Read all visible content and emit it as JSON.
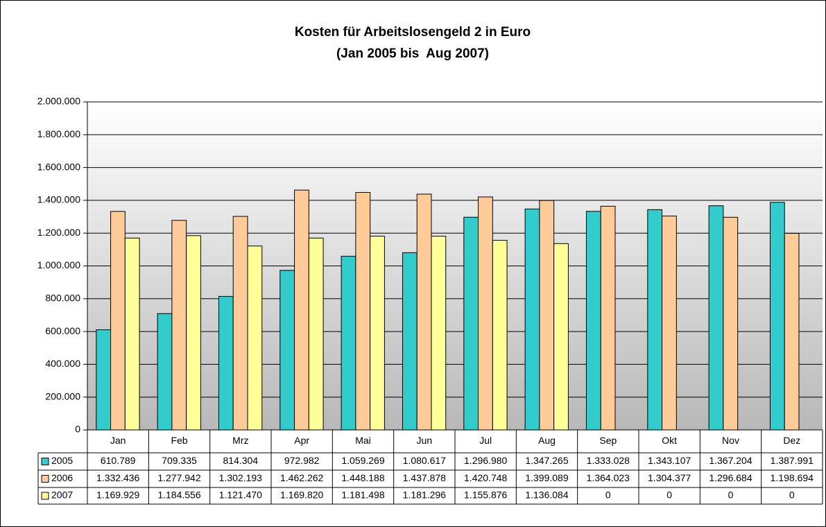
{
  "chart_data": {
    "type": "bar",
    "title": "Kosten für Arbeitslosengeld 2 in Euro",
    "subtitle": "(Jan 2005 bis  Aug 2007)",
    "categories": [
      "Jan",
      "Feb",
      "Mrz",
      "Apr",
      "Mai",
      "Jun",
      "Jul",
      "Aug",
      "Sep",
      "Okt",
      "Nov",
      "Dez"
    ],
    "series": [
      {
        "name": "2005",
        "color": "#33CCCC",
        "values": [
          610789,
          709335,
          814304,
          972982,
          1059269,
          1080617,
          1296980,
          1347265,
          1333028,
          1343107,
          1367204,
          1387991
        ],
        "value_labels": [
          "610.789",
          "709.335",
          "814.304",
          "972.982",
          "1.059.269",
          "1.080.617",
          "1.296.980",
          "1.347.265",
          "1.333.028",
          "1.343.107",
          "1.367.204",
          "1.387.991"
        ]
      },
      {
        "name": "2006",
        "color": "#FFCC99",
        "values": [
          1332436,
          1277942,
          1302193,
          1462262,
          1448188,
          1437878,
          1420748,
          1399089,
          1364023,
          1304377,
          1296684,
          1198694
        ],
        "value_labels": [
          "1.332.436",
          "1.277.942",
          "1.302.193",
          "1.462.262",
          "1.448.188",
          "1.437.878",
          "1.420.748",
          "1.399.089",
          "1.364.023",
          "1.304.377",
          "1.296.684",
          "1.198.694"
        ]
      },
      {
        "name": "2007",
        "color": "#FFFF99",
        "values": [
          1169929,
          1184556,
          1121470,
          1169820,
          1181498,
          1181296,
          1155876,
          1136084,
          0,
          0,
          0,
          0
        ],
        "value_labels": [
          "1.169.929",
          "1.184.556",
          "1.121.470",
          "1.169.820",
          "1.181.498",
          "1.181.296",
          "1.155.876",
          "1.136.084",
          "0",
          "0",
          "0",
          "0"
        ]
      }
    ],
    "ylim": [
      0,
      2000000
    ],
    "yticks": [
      0,
      {
        "value": 200000,
        "label": "200.000"
      },
      {
        "value": 400000,
        "label": "400.000"
      },
      {
        "value": 600000,
        "label": "600.000"
      },
      {
        "value": 800000,
        "label": "800.000"
      },
      {
        "value": 1000000,
        "label": "1.000.000"
      },
      {
        "value": 1200000,
        "label": "1.200.000"
      },
      {
        "value": 1400000,
        "label": "1.400.000"
      },
      {
        "value": 1600000,
        "label": "1.600.000"
      },
      {
        "value": 1800000,
        "label": "1.800.000"
      },
      {
        "value": 2000000,
        "label": "2.000.000"
      }
    ],
    "grid": true
  }
}
